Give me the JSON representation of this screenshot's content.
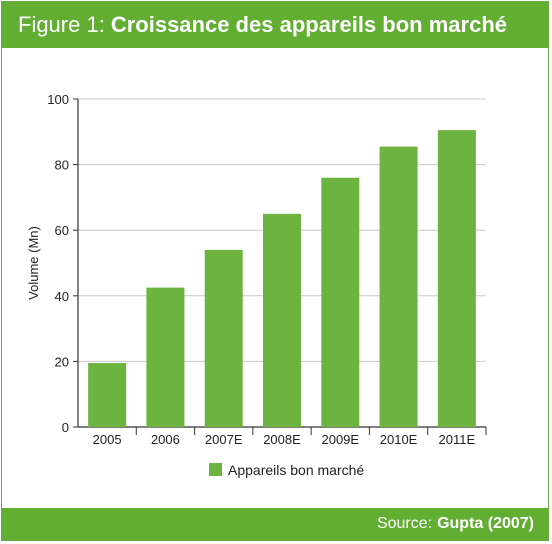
{
  "header": {
    "figure_label": "Figure 1:",
    "title": "Croissance des appareils bon marché"
  },
  "footer": {
    "source_label": "Source:",
    "source_value": "Gupta (2007)"
  },
  "colors": {
    "bar": "#6cb33f",
    "header_bg": "#62ae33",
    "grid": "#c8c8c8",
    "axis": "#333333"
  },
  "chart_data": {
    "type": "bar",
    "title": "",
    "xlabel": "",
    "ylabel": "Volume (Mn)",
    "categories": [
      "2005",
      "2006",
      "2007E",
      "2008E",
      "2009E",
      "2010E",
      "2011E"
    ],
    "series": [
      {
        "name": "Appareils bon marché",
        "values": [
          19.5,
          42.5,
          54,
          65,
          76,
          85.5,
          90.5
        ]
      }
    ],
    "ylim": [
      0,
      100
    ],
    "yticks": [
      0,
      20,
      40,
      60,
      80,
      100
    ],
    "grid": true,
    "legend": "bottom"
  }
}
